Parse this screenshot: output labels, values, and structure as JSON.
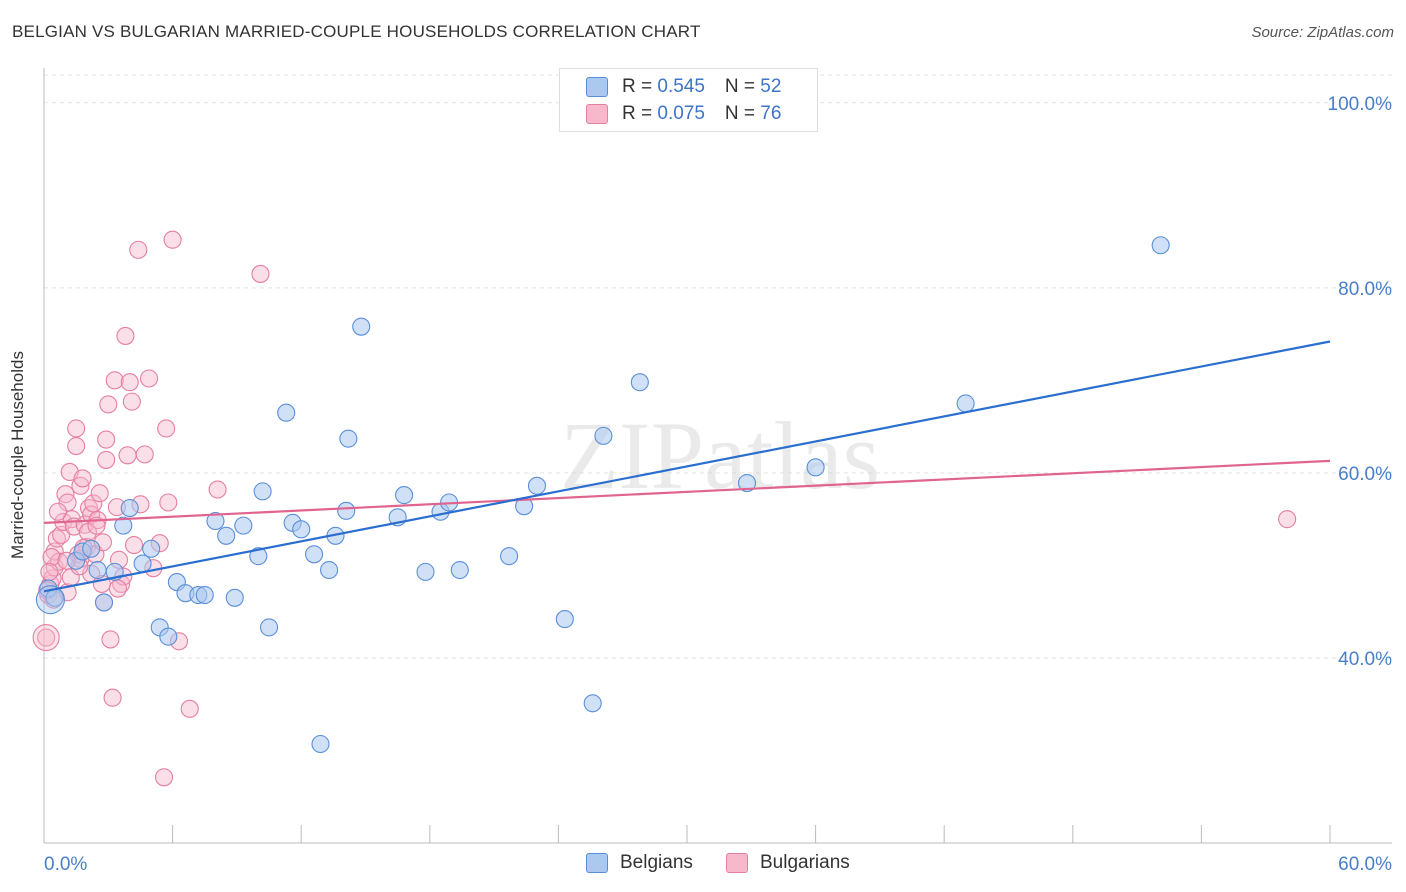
{
  "title": "BELGIAN VS BULGARIAN MARRIED-COUPLE HOUSEHOLDS CORRELATION CHART",
  "source": "Source: ZipAtlas.com",
  "watermark": "ZIPatlas",
  "colors": {
    "belgians_fill": "#aac8f0",
    "belgians_stroke": "#5a8fd8",
    "belgians_line": "#2a6fcf",
    "bulgarians_fill": "#f7b8cb",
    "bulgarians_stroke": "#e57fa0",
    "bulgarians_line": "#e0648f",
    "tick_text": "#4a7fc8"
  },
  "legend": {
    "belgians": {
      "r_label": "R = ",
      "r_value": "0.545",
      "n_label": "N = ",
      "n_value": "52"
    },
    "bulgarians": {
      "r_label": "R = ",
      "r_value": "0.075",
      "n_label": "N = ",
      "n_value": "76"
    }
  },
  "bottom_legend": {
    "belgians": "Belgians",
    "bulgarians": "Bulgarians"
  },
  "chart_data": {
    "type": "scatter",
    "title": "BELGIAN VS BULGARIAN MARRIED-COUPLE HOUSEHOLDS CORRELATION CHART",
    "xlabel": "",
    "ylabel": "Married-couple Households",
    "xlim": [
      0,
      60
    ],
    "ylim": [
      20,
      103
    ],
    "x_tick_labels": [
      "0.0%",
      "60.0%"
    ],
    "y_ticks": [
      40,
      60,
      80,
      100
    ],
    "y_tick_labels": [
      "40.0%",
      "60.0%",
      "80.0%",
      "100.0%"
    ],
    "grid": true,
    "legend_position": "top-center",
    "series": [
      {
        "name": "Belgians",
        "trend": {
          "x0": 0,
          "y0": 47.2,
          "x1": 60,
          "y1": 74.2
        },
        "points": [
          [
            0.2,
            47.5
          ],
          [
            0.5,
            46.5
          ],
          [
            1.5,
            50.5
          ],
          [
            1.8,
            51.5
          ],
          [
            2.2,
            51.8
          ],
          [
            2.5,
            49.5
          ],
          [
            2.8,
            46.0
          ],
          [
            3.3,
            49.3
          ],
          [
            3.7,
            54.3
          ],
          [
            4.0,
            56.2
          ],
          [
            4.6,
            50.2
          ],
          [
            5.0,
            51.8
          ],
          [
            5.4,
            43.3
          ],
          [
            5.8,
            42.3
          ],
          [
            6.2,
            48.2
          ],
          [
            6.6,
            47.0
          ],
          [
            7.2,
            46.8
          ],
          [
            7.5,
            46.8
          ],
          [
            8.0,
            54.8
          ],
          [
            8.5,
            53.2
          ],
          [
            8.9,
            46.5
          ],
          [
            9.3,
            54.3
          ],
          [
            10.0,
            51.0
          ],
          [
            10.2,
            58.0
          ],
          [
            10.5,
            43.3
          ],
          [
            11.3,
            66.5
          ],
          [
            11.6,
            54.6
          ],
          [
            12.0,
            53.9
          ],
          [
            12.6,
            51.2
          ],
          [
            12.9,
            30.7
          ],
          [
            13.3,
            49.5
          ],
          [
            13.6,
            53.2
          ],
          [
            14.8,
            75.8
          ],
          [
            14.2,
            63.7
          ],
          [
            14.1,
            55.9
          ],
          [
            16.5,
            55.2
          ],
          [
            16.8,
            57.6
          ],
          [
            17.8,
            49.3
          ],
          [
            18.5,
            55.8
          ],
          [
            18.9,
            56.8
          ],
          [
            19.4,
            49.5
          ],
          [
            21.7,
            51.0
          ],
          [
            22.4,
            56.4
          ],
          [
            23.0,
            58.6
          ],
          [
            24.3,
            44.2
          ],
          [
            25.6,
            35.1
          ],
          [
            26.1,
            64.0
          ],
          [
            27.8,
            69.8
          ],
          [
            32.8,
            58.9
          ],
          [
            36.0,
            60.6
          ],
          [
            43.0,
            67.5
          ],
          [
            52.1,
            84.6
          ]
        ]
      },
      {
        "name": "Bulgarians",
        "trend": {
          "x0": 0,
          "y0": 54.6,
          "x1": 60,
          "y1": 61.3
        },
        "points": [
          [
            0.1,
            42.2
          ],
          [
            0.2,
            46.8
          ],
          [
            0.3,
            48.0
          ],
          [
            0.4,
            48.6
          ],
          [
            0.5,
            49.8
          ],
          [
            0.5,
            51.5
          ],
          [
            0.6,
            52.9
          ],
          [
            0.7,
            50.4
          ],
          [
            0.8,
            53.3
          ],
          [
            0.9,
            54.7
          ],
          [
            1.0,
            57.7
          ],
          [
            1.1,
            56.8
          ],
          [
            1.1,
            47.1
          ],
          [
            1.2,
            60.1
          ],
          [
            1.3,
            55.0
          ],
          [
            1.4,
            54.2
          ],
          [
            1.5,
            62.9
          ],
          [
            1.5,
            64.8
          ],
          [
            1.6,
            51.2
          ],
          [
            1.7,
            58.6
          ],
          [
            1.7,
            50.7
          ],
          [
            1.8,
            59.4
          ],
          [
            1.9,
            54.4
          ],
          [
            2.0,
            52.0
          ],
          [
            2.1,
            56.2
          ],
          [
            2.2,
            55.5
          ],
          [
            2.2,
            49.1
          ],
          [
            2.3,
            56.7
          ],
          [
            2.4,
            51.2
          ],
          [
            2.5,
            54.9
          ],
          [
            2.6,
            57.8
          ],
          [
            2.7,
            48.0
          ],
          [
            2.8,
            46.0
          ],
          [
            2.9,
            61.4
          ],
          [
            2.9,
            63.6
          ],
          [
            3.0,
            67.4
          ],
          [
            3.1,
            42.0
          ],
          [
            3.2,
            35.7
          ],
          [
            3.3,
            70.0
          ],
          [
            3.4,
            56.3
          ],
          [
            3.5,
            50.6
          ],
          [
            3.6,
            48.0
          ],
          [
            3.7,
            48.8
          ],
          [
            3.8,
            74.8
          ],
          [
            3.9,
            61.9
          ],
          [
            4.0,
            69.8
          ],
          [
            4.1,
            67.7
          ],
          [
            4.2,
            52.2
          ],
          [
            4.4,
            84.1
          ],
          [
            4.5,
            56.6
          ],
          [
            4.7,
            62.0
          ],
          [
            4.9,
            70.2
          ],
          [
            5.1,
            49.7
          ],
          [
            5.4,
            52.4
          ],
          [
            5.6,
            27.1
          ],
          [
            5.7,
            64.8
          ],
          [
            5.8,
            56.8
          ],
          [
            6.0,
            85.2
          ],
          [
            6.3,
            41.8
          ],
          [
            6.8,
            34.5
          ],
          [
            8.1,
            58.2
          ],
          [
            10.1,
            81.5
          ],
          [
            58.0,
            55.0
          ],
          [
            0.15,
            47.3
          ],
          [
            0.35,
            50.9
          ],
          [
            1.25,
            48.7
          ],
          [
            2.05,
            53.6
          ],
          [
            2.75,
            52.5
          ],
          [
            3.45,
            47.5
          ],
          [
            0.25,
            49.3
          ],
          [
            1.65,
            49.9
          ],
          [
            2.45,
            54.3
          ],
          [
            0.65,
            55.8
          ],
          [
            1.85,
            51.9
          ],
          [
            0.45,
            46.3
          ],
          [
            1.05,
            50.5
          ]
        ]
      }
    ]
  }
}
